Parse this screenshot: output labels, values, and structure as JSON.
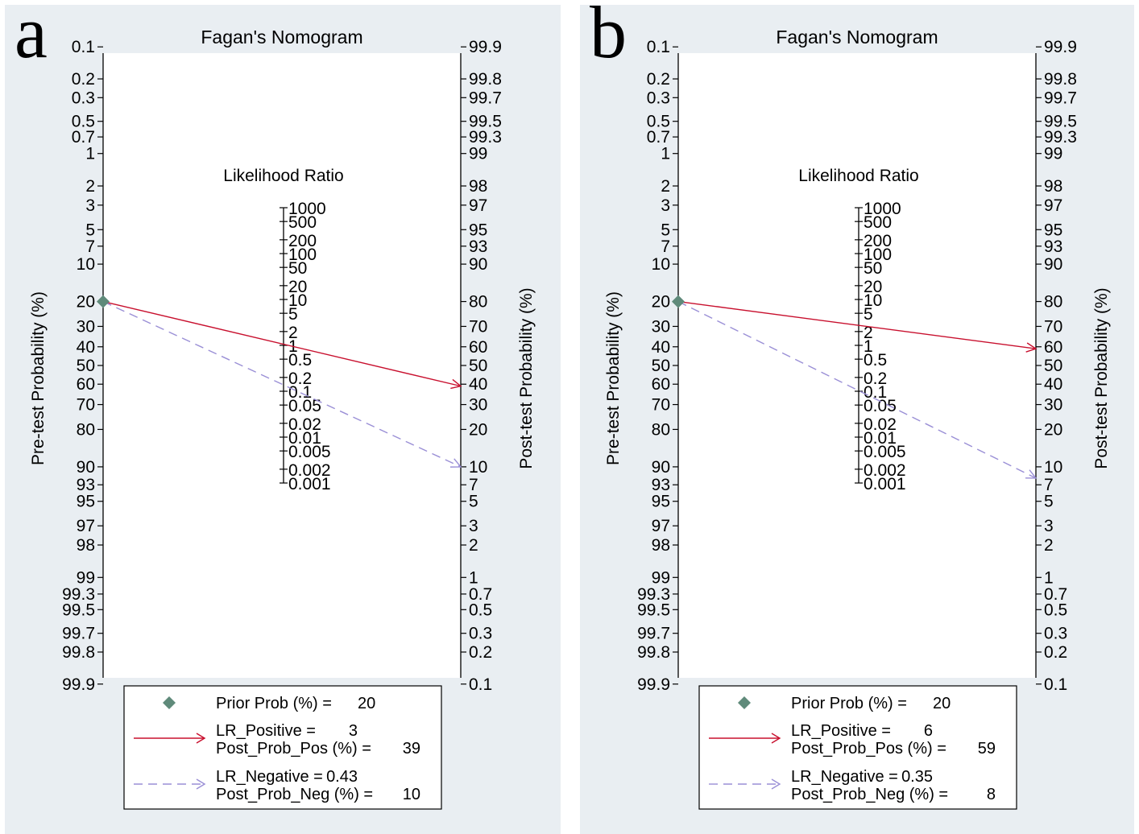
{
  "panels": [
    {
      "letter": "a",
      "chart_data": {
        "type": "line",
        "title": "Fagan's Nomogram",
        "ylabel_left": "Pre-test Probability (%)",
        "ylabel_right": "Post-test Probability (%)",
        "center_axis_label": "Likelihood Ratio",
        "left_ticks": [
          "0.1",
          "0.2",
          "0.3",
          "0.5",
          "0.7",
          "1",
          "2",
          "3",
          "5",
          "7",
          "10",
          "20",
          "30",
          "40",
          "50",
          "60",
          "70",
          "80",
          "90",
          "93",
          "95",
          "97",
          "98",
          "99",
          "99.3",
          "99.5",
          "99.7",
          "99.8",
          "99.9"
        ],
        "right_ticks": [
          "99.9",
          "99.8",
          "99.7",
          "99.5",
          "99.3",
          "99",
          "98",
          "97",
          "95",
          "93",
          "90",
          "80",
          "70",
          "60",
          "50",
          "40",
          "30",
          "20",
          "10",
          "7",
          "5",
          "3",
          "2",
          "1",
          "0.7",
          "0.5",
          "0.3",
          "0.2",
          "0.1"
        ],
        "lr_ticks": [
          "1000",
          "500",
          "200",
          "100",
          "50",
          "20",
          "10",
          "5",
          "2",
          "1",
          "0.5",
          "0.2",
          "0.1",
          "0.05",
          "0.02",
          "0.01",
          "0.005",
          "0.002",
          "0.001"
        ],
        "prior_prob": 20,
        "series": [
          {
            "name": "LR_Positive",
            "lr": 3,
            "post_prob": 39,
            "color": "#c8102e",
            "style": "solid"
          },
          {
            "name": "LR_Negative",
            "lr": 0.43,
            "post_prob": 10,
            "color": "#9a8fd6",
            "style": "dashed"
          }
        ],
        "legend": {
          "prior": {
            "label": "Prior Prob (%) =",
            "value": "20"
          },
          "pos": {
            "label1": "LR_Positive =",
            "value1": "3",
            "label2": "Post_Prob_Pos (%) =",
            "value2": "39"
          },
          "neg": {
            "label1": "LR_Negative =",
            "value1": "0.43",
            "label2": "Post_Prob_Neg (%) =",
            "value2": "10"
          }
        },
        "colors": {
          "prior_marker": "#5f8a7a"
        }
      }
    },
    {
      "letter": "b",
      "chart_data": {
        "type": "line",
        "title": "Fagan's Nomogram",
        "ylabel_left": "Pre-test Probability (%)",
        "ylabel_right": "Post-test Probability (%)",
        "center_axis_label": "Likelihood Ratio",
        "left_ticks": [
          "0.1",
          "0.2",
          "0.3",
          "0.5",
          "0.7",
          "1",
          "2",
          "3",
          "5",
          "7",
          "10",
          "20",
          "30",
          "40",
          "50",
          "60",
          "70",
          "80",
          "90",
          "93",
          "95",
          "97",
          "98",
          "99",
          "99.3",
          "99.5",
          "99.7",
          "99.8",
          "99.9"
        ],
        "right_ticks": [
          "99.9",
          "99.8",
          "99.7",
          "99.5",
          "99.3",
          "99",
          "98",
          "97",
          "95",
          "93",
          "90",
          "80",
          "70",
          "60",
          "50",
          "40",
          "30",
          "20",
          "10",
          "7",
          "5",
          "3",
          "2",
          "1",
          "0.7",
          "0.5",
          "0.3",
          "0.2",
          "0.1"
        ],
        "lr_ticks": [
          "1000",
          "500",
          "200",
          "100",
          "50",
          "20",
          "10",
          "5",
          "2",
          "1",
          "0.5",
          "0.2",
          "0.1",
          "0.05",
          "0.02",
          "0.01",
          "0.005",
          "0.002",
          "0.001"
        ],
        "prior_prob": 20,
        "series": [
          {
            "name": "LR_Positive",
            "lr": 6,
            "post_prob": 59,
            "color": "#c8102e",
            "style": "solid"
          },
          {
            "name": "LR_Negative",
            "lr": 0.35,
            "post_prob": 8,
            "color": "#9a8fd6",
            "style": "dashed"
          }
        ],
        "legend": {
          "prior": {
            "label": "Prior Prob (%) =",
            "value": "20"
          },
          "pos": {
            "label1": "LR_Positive =",
            "value1": "6",
            "label2": "Post_Prob_Pos (%) =",
            "value2": "59"
          },
          "neg": {
            "label1": "LR_Negative =",
            "value1": "0.35",
            "label2": "Post_Prob_Neg (%) =",
            "value2": "8"
          }
        },
        "colors": {
          "prior_marker": "#5f8a7a"
        }
      }
    }
  ]
}
